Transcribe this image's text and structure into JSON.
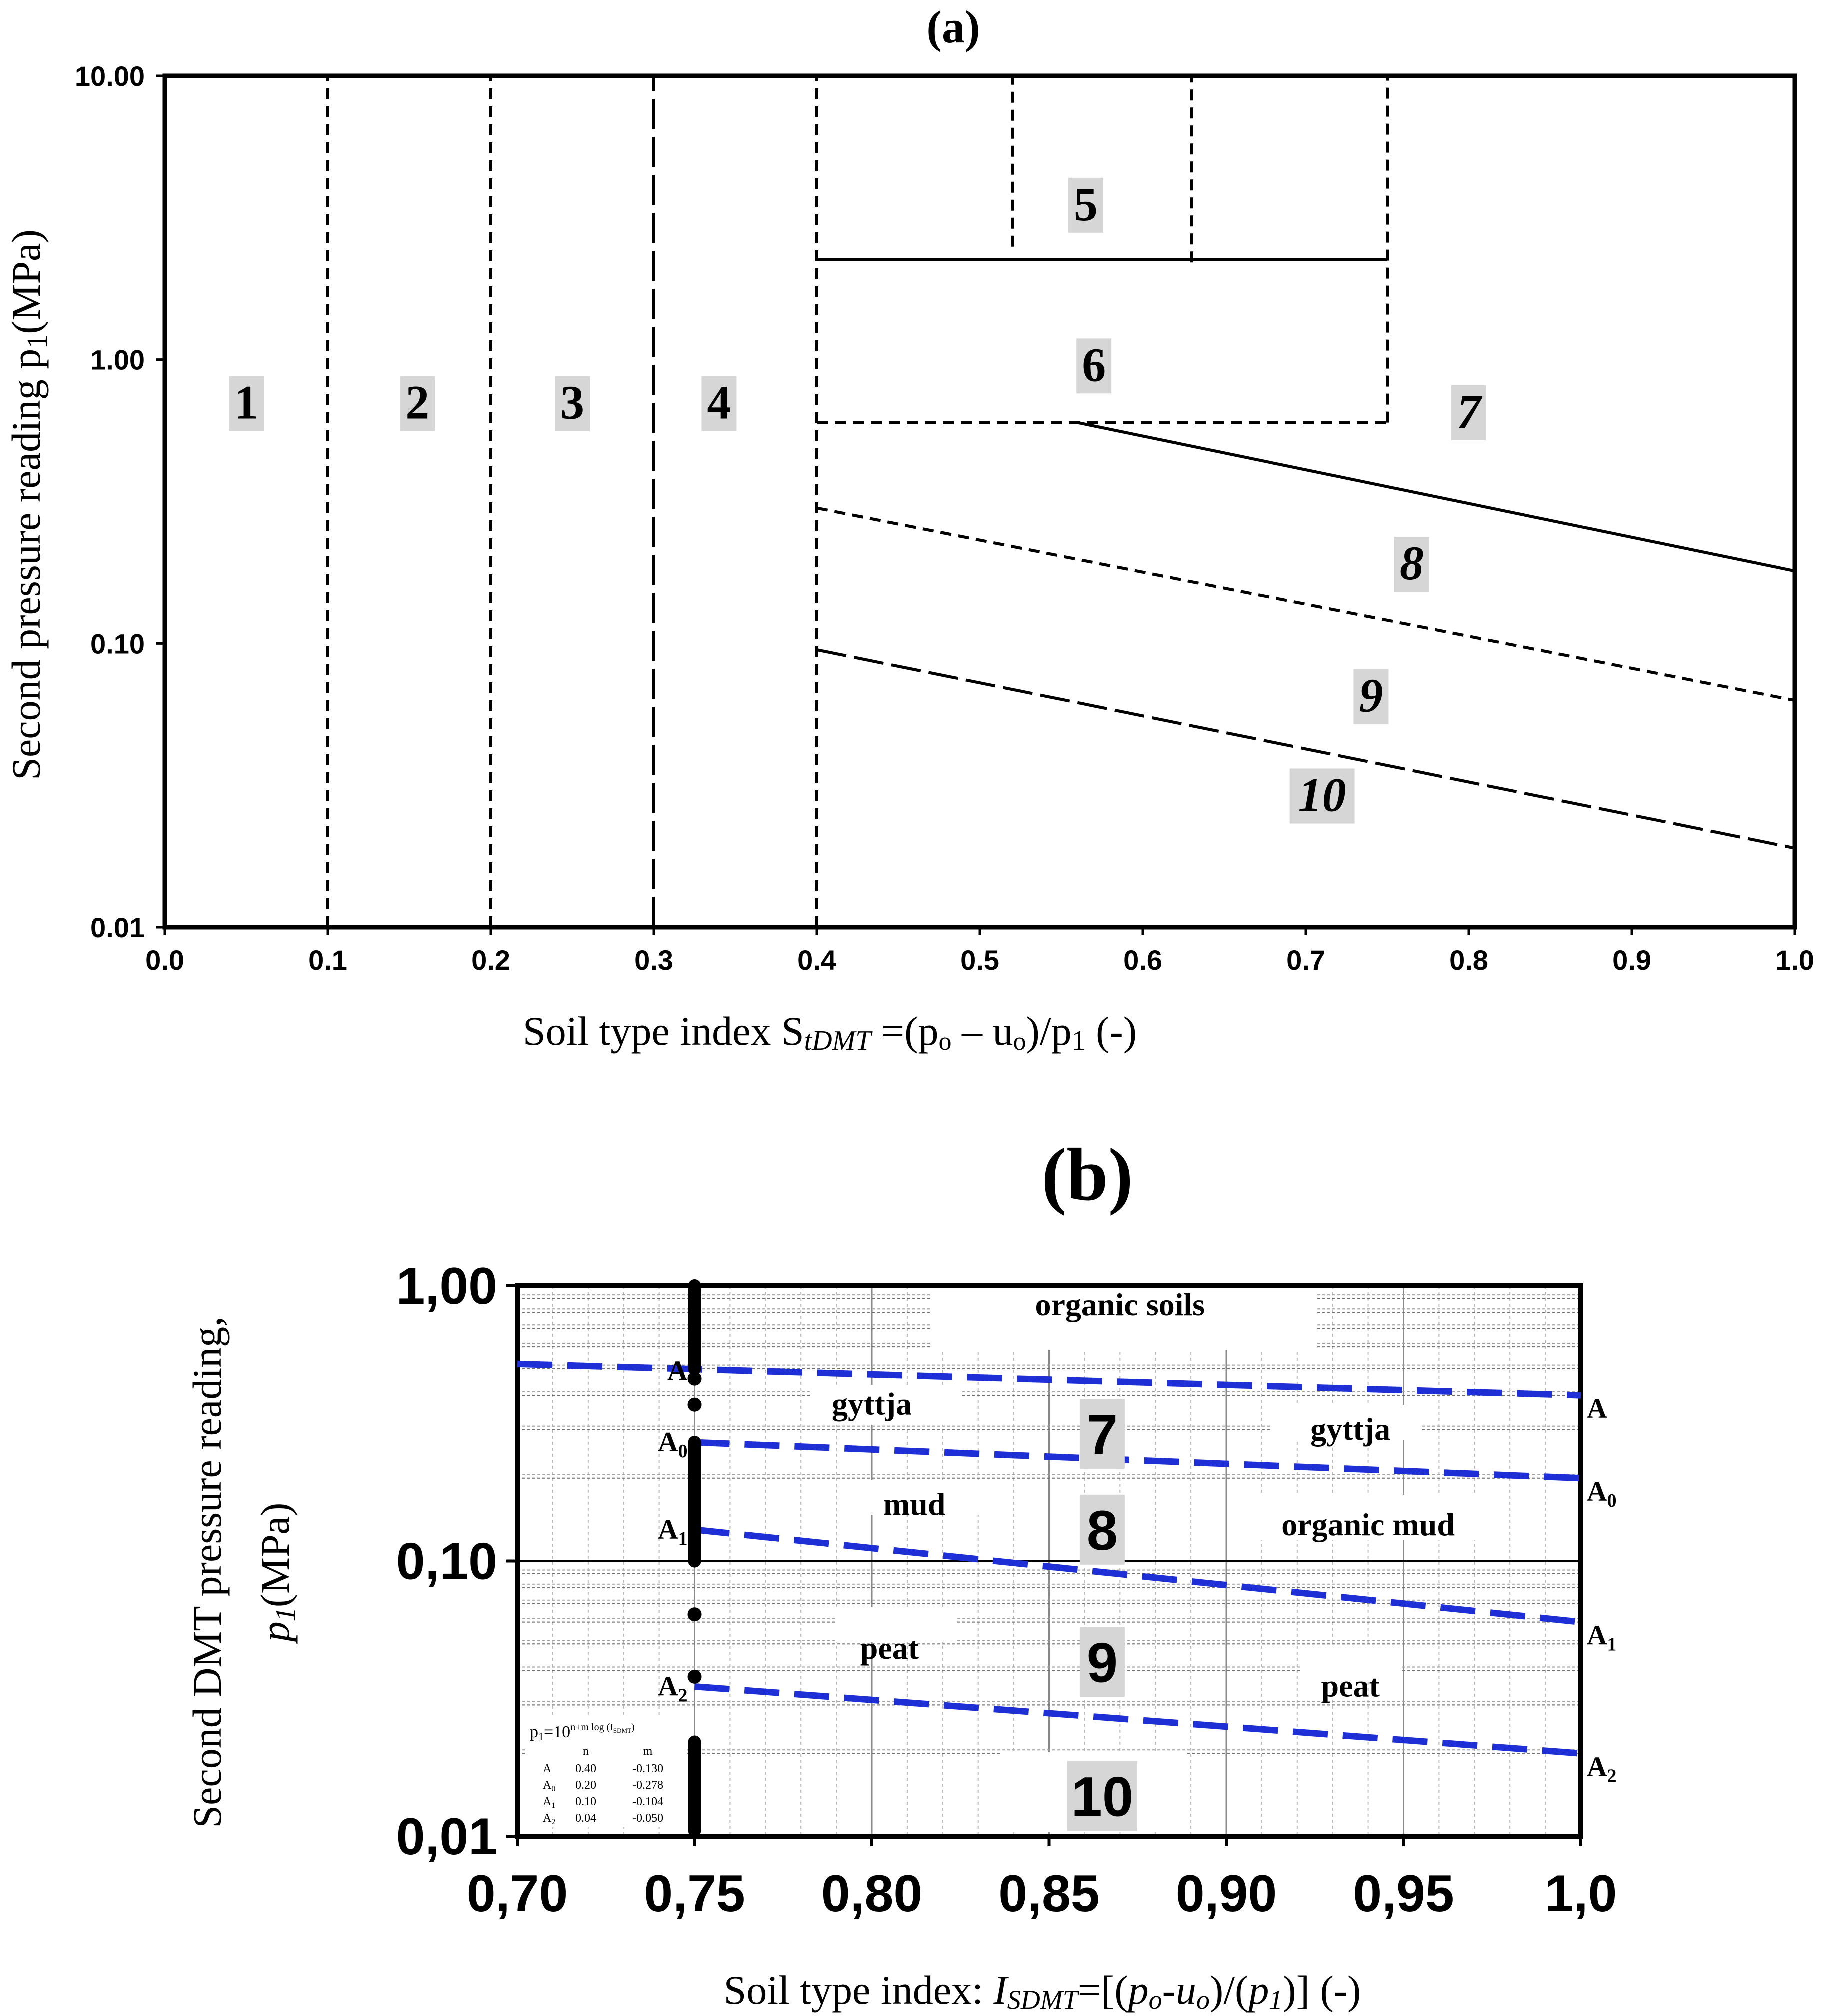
{
  "panel_a": {
    "label": "(a)",
    "y_axis_title": "Second pressure reading p",
    "y_axis_title_sub": "1",
    "y_axis_title_unit": "(MPa)",
    "x_axis_title_prefix": "Soil type index S",
    "x_axis_title_sub": "tDMT",
    "x_axis_title_formula": " =(p",
    "x_axis_title_o1": "o",
    "x_axis_title_mid": " – u",
    "x_axis_title_o2": "o",
    "x_axis_title_end": ")/p",
    "x_axis_title_sub2": "1",
    "x_axis_title_tail": " (-)"
  },
  "panel_b": {
    "label": "(b)",
    "y_axis_title_line1": "Second DMT pressure reading,",
    "y_axis_title_p": "p",
    "y_axis_title_sub": "1",
    "y_axis_title_unit": "(MPa)",
    "x_axis_title_prefix": "Soil type index: ",
    "x_axis_title_I": "I",
    "x_axis_title_sub": "SDMT",
    "x_axis_title_eq": "=[(",
    "x_axis_title_p0": "p",
    "x_axis_title_o": "o",
    "x_axis_title_minus": "-",
    "x_axis_title_u": "u",
    "x_axis_title_o2": "o",
    "x_axis_title_div": ")/(",
    "x_axis_title_p1": "p",
    "x_axis_title_1": "1",
    "x_axis_title_end": ")] (-)",
    "formula": {
      "lhs": "p",
      "lhs_sub": "1",
      "rhs": "=10",
      "exp": "n+m log (I",
      "exp_sub": "SDMT",
      "exp_end": ")",
      "header_n": "n",
      "header_m": "m",
      "rows": [
        {
          "name": "A",
          "sub": "",
          "n": "0.40",
          "m": "-0.130"
        },
        {
          "name": "A",
          "sub": "0",
          "n": "0.20",
          "m": "-0.278"
        },
        {
          "name": "A",
          "sub": "1",
          "n": "0.10",
          "m": "-0.104"
        },
        {
          "name": "A",
          "sub": "2",
          "n": "0.04",
          "m": "-0.050"
        }
      ]
    }
  },
  "colors": {
    "axis": "#000000",
    "boundary": "#000000",
    "blue_line": "#1f2fd6",
    "label_bg": "#d6d6d6",
    "grid": "#9a9a9a"
  },
  "chart_data": [
    {
      "type": "line",
      "title": "(a)",
      "xlabel": "Soil type index StDMT =(po – uo)/p1 (-)",
      "ylabel": "Second pressure reading p1(MPa)",
      "xlim": [
        0.0,
        1.0
      ],
      "ylim": [
        0.01,
        10.0
      ],
      "yscale": "log",
      "x_ticks": [
        "0.0",
        "0.1",
        "0.2",
        "0.3",
        "0.4",
        "0.5",
        "0.6",
        "0.7",
        "0.8",
        "0.9",
        "1.0"
      ],
      "y_ticks": [
        "10.00",
        "1.00",
        "0.10",
        "0.01"
      ],
      "boundaries": [
        {
          "name": "x=0.1",
          "style": "dashed",
          "points": [
            [
              0.1,
              0.01
            ],
            [
              0.1,
              10.0
            ]
          ]
        },
        {
          "name": "x=0.2",
          "style": "dashed",
          "points": [
            [
              0.2,
              0.01
            ],
            [
              0.2,
              10.0
            ]
          ]
        },
        {
          "name": "x=0.3",
          "style": "long-dash",
          "points": [
            [
              0.3,
              0.01
            ],
            [
              0.3,
              10.0
            ]
          ]
        },
        {
          "name": "x=0.4",
          "style": "dashed",
          "points": [
            [
              0.4,
              0.01
            ],
            [
              0.4,
              10.0
            ]
          ]
        },
        {
          "name": "x=0.52",
          "style": "dashed",
          "points": [
            [
              0.52,
              2.5
            ],
            [
              0.52,
              10.0
            ]
          ]
        },
        {
          "name": "x=0.63",
          "style": "dashed",
          "points": [
            [
              0.63,
              2.2
            ],
            [
              0.63,
              10.0
            ]
          ]
        },
        {
          "name": "x=0.75",
          "style": "dashed",
          "points": [
            [
              0.75,
              0.6
            ],
            [
              0.75,
              10.0
            ]
          ]
        },
        {
          "name": "p1=2.2",
          "style": "solid",
          "points": [
            [
              0.4,
              2.25
            ],
            [
              0.75,
              2.25
            ]
          ]
        },
        {
          "name": "p1=0.6",
          "style": "dashed",
          "points": [
            [
              0.4,
              0.6
            ],
            [
              0.75,
              0.6
            ]
          ]
        },
        {
          "name": "zone 7/8",
          "style": "solid",
          "points": [
            [
              0.56,
              0.6
            ],
            [
              1.0,
              0.18
            ]
          ]
        },
        {
          "name": "zone 8/9",
          "style": "dashed",
          "points": [
            [
              0.4,
              0.3
            ],
            [
              1.0,
              0.063
            ]
          ]
        },
        {
          "name": "zone 9/10",
          "style": "long-dash",
          "points": [
            [
              0.4,
              0.095
            ],
            [
              1.0,
              0.019
            ]
          ]
        }
      ],
      "annotations": [
        {
          "text": "1",
          "x": 0.05,
          "y": 0.7
        },
        {
          "text": "2",
          "x": 0.155,
          "y": 0.7
        },
        {
          "text": "3",
          "x": 0.25,
          "y": 0.7
        },
        {
          "text": "4",
          "x": 0.34,
          "y": 0.7
        },
        {
          "text": "5",
          "x": 0.565,
          "y": 3.5
        },
        {
          "text": "6",
          "x": 0.57,
          "y": 0.95
        },
        {
          "text": "7",
          "x": 0.8,
          "y": 0.65
        },
        {
          "text": "8",
          "x": 0.765,
          "y": 0.19
        },
        {
          "text": "9",
          "x": 0.74,
          "y": 0.065
        },
        {
          "text": "10",
          "x": 0.71,
          "y": 0.029
        }
      ]
    },
    {
      "type": "line",
      "title": "(b)",
      "xlabel": "Soil type index: ISDMT=[(po-uo)/(p1)] (-)",
      "ylabel": "Second DMT pressure reading, p1(MPa)",
      "xlim": [
        0.7,
        1.0
      ],
      "ylim": [
        0.01,
        1.0
      ],
      "yscale": "log",
      "x_ticks": [
        "0,70",
        "0,75",
        "0,80",
        "0,85",
        "0,90",
        "0,95",
        "1,0"
      ],
      "y_ticks": [
        "1,00",
        "0,10",
        "0,01"
      ],
      "series": [
        {
          "name": "A",
          "n": 0.4,
          "m": -0.13,
          "x": [
            0.7,
            1.0
          ],
          "y": [
            0.52,
            0.4
          ]
        },
        {
          "name": "A0",
          "n": 0.2,
          "m": -0.278,
          "x": [
            0.75,
            1.0
          ],
          "y": [
            0.27,
            0.2
          ]
        },
        {
          "name": "A1",
          "n": 0.1,
          "m": -0.104,
          "x": [
            0.75,
            1.0
          ],
          "y": [
            0.13,
            0.06
          ]
        },
        {
          "name": "A2",
          "n": 0.04,
          "m": -0.05,
          "x": [
            0.75,
            1.0
          ],
          "y": [
            0.035,
            0.02
          ]
        }
      ],
      "points_x075": [
        0.46,
        0.37,
        0.064,
        0.038
      ],
      "annotations": [
        {
          "text": "organic soils",
          "x": 0.87,
          "y": 0.85
        },
        {
          "text": "gyttja",
          "x": 0.8,
          "y": 0.37
        },
        {
          "text": "gyttja",
          "x": 0.935,
          "y": 0.3
        },
        {
          "text": "7",
          "x": 0.865,
          "y": 0.29
        },
        {
          "text": "mud",
          "x": 0.812,
          "y": 0.16
        },
        {
          "text": "8",
          "x": 0.865,
          "y": 0.13
        },
        {
          "text": "organic mud",
          "x": 0.94,
          "y": 0.135
        },
        {
          "text": "peat",
          "x": 0.805,
          "y": 0.048
        },
        {
          "text": "9",
          "x": 0.865,
          "y": 0.043
        },
        {
          "text": "peat",
          "x": 0.935,
          "y": 0.035
        },
        {
          "text": "10",
          "x": 0.865,
          "y": 0.014
        }
      ],
      "end_labels": [
        {
          "text": "A",
          "sub": ""
        },
        {
          "text": "A",
          "sub": "0"
        },
        {
          "text": "A",
          "sub": "1"
        },
        {
          "text": "A",
          "sub": "2"
        }
      ],
      "left_labels": [
        {
          "text": "A",
          "sub": ""
        },
        {
          "text": "A",
          "sub": "0"
        },
        {
          "text": "A",
          "sub": "1"
        },
        {
          "text": "A",
          "sub": "2"
        }
      ]
    }
  ]
}
